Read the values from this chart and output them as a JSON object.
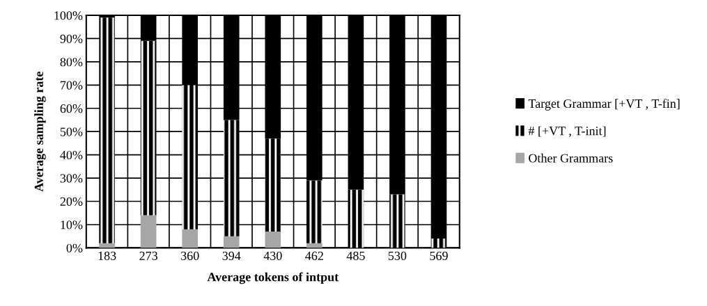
{
  "chart_data": {
    "type": "bar",
    "stacked": true,
    "xlabel": "Average tokens of intput",
    "ylabel": "Average sampling rate",
    "categories": [
      "183",
      "273",
      "360",
      "394",
      "430",
      "462",
      "485",
      "530",
      "569"
    ],
    "series": [
      {
        "name": "Other Grammars",
        "color": "#a6a6a6",
        "values": [
          2,
          14,
          8,
          5,
          7,
          2,
          0,
          0,
          0
        ]
      },
      {
        "name": "# [+VT , T-init]",
        "color": "#000000",
        "values": [
          97,
          75,
          62,
          50,
          40,
          27,
          25,
          23,
          4
        ]
      },
      {
        "name": "Target Grammar [+VT , T-fin]",
        "color": "#000000",
        "values": [
          1,
          11,
          30,
          45,
          53,
          71,
          75,
          77,
          96
        ]
      }
    ],
    "ylim": [
      0,
      100
    ],
    "yticks": [
      {
        "value": 0,
        "label": "0%"
      },
      {
        "value": 10,
        "label": "10%"
      },
      {
        "value": 20,
        "label": "20%"
      },
      {
        "value": 30,
        "label": "30%"
      },
      {
        "value": 40,
        "label": "40%"
      },
      {
        "value": 50,
        "label": "50%"
      },
      {
        "value": 60,
        "label": "60%"
      },
      {
        "value": 70,
        "label": "70%"
      },
      {
        "value": 80,
        "label": "80%"
      },
      {
        "value": 90,
        "label": "90%"
      },
      {
        "value": 100,
        "label": "100%"
      }
    ],
    "grid": true,
    "legend": "right"
  }
}
